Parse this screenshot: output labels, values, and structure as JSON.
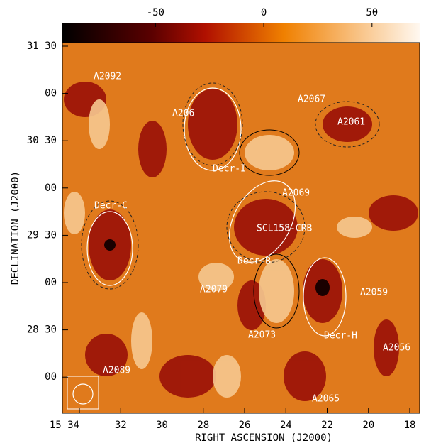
{
  "colorbar": {
    "range": [
      -93,
      72
    ],
    "ticks": [
      -50,
      0,
      50
    ]
  },
  "axes": {
    "x_label": "RIGHT ASCENSION (J2000)",
    "y_label": "DECLINATION (J2000)",
    "x_ticks": [
      "15 34",
      "32",
      "30",
      "28",
      "26",
      "24",
      "22",
      "20",
      "18"
    ],
    "y_ticks": [
      "31 30",
      "00",
      "30 30",
      "00",
      "29 30",
      "00",
      "28 30",
      "00"
    ]
  },
  "annotations": [
    "A2092",
    "A2067",
    "A2061",
    "A206",
    "Decr-I",
    "A2069",
    "Decr-C",
    "SCL158-CRB",
    "Decr-B",
    "A2079",
    "A2059",
    "A2073",
    "Decr-H",
    "A2056",
    "A2089",
    "A2065"
  ]
}
